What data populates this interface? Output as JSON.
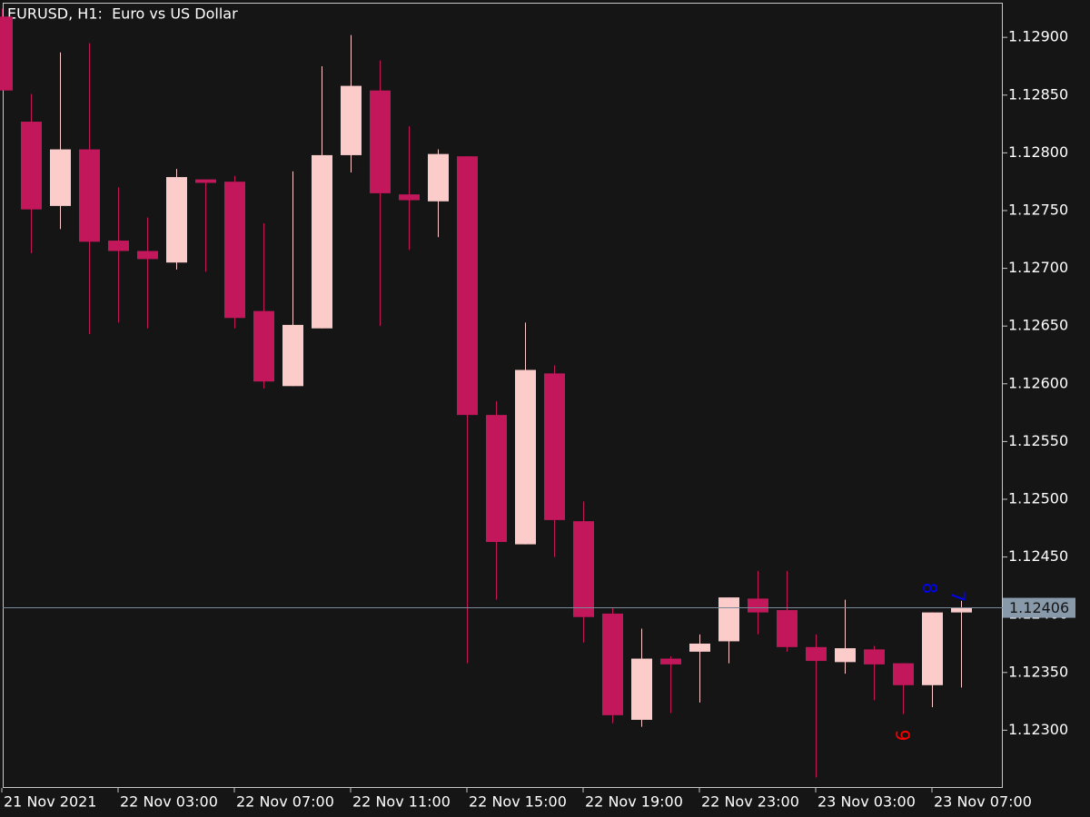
{
  "chart_data": {
    "type": "candlestick",
    "title": "EURUSD, H1:  Euro vs US Dollar",
    "categories": [
      "21 Nov 2021",
      null,
      null,
      null,
      "22 Nov 03:00",
      null,
      null,
      null,
      "22 Nov 07:00",
      null,
      null,
      null,
      "22 Nov 11:00",
      null,
      null,
      null,
      "22 Nov 15:00",
      null,
      null,
      null,
      "22 Nov 19:00",
      null,
      null,
      null,
      "22 Nov 23:00",
      null,
      null,
      null,
      "23 Nov 03:00",
      null,
      null,
      null,
      "23 Nov 07:00",
      null
    ],
    "open": [
      1.12918,
      1.12827,
      1.12754,
      1.12803,
      1.12724,
      1.12715,
      1.12705,
      1.12777,
      1.12775,
      1.12663,
      1.12598,
      1.12648,
      1.12798,
      1.12854,
      1.12764,
      1.12758,
      1.12797,
      1.12573,
      1.12461,
      1.12609,
      1.12481,
      1.12401,
      1.12309,
      1.12362,
      1.12368,
      1.12377,
      1.12414,
      1.12404,
      1.12372,
      1.12359,
      1.1237,
      1.12358,
      1.12339,
      1.12402
    ],
    "high": [
      1.12925,
      1.12851,
      1.12887,
      1.12895,
      1.1277,
      1.12744,
      1.12786,
      1.12777,
      1.1278,
      1.12739,
      1.12784,
      1.12875,
      1.12902,
      1.1288,
      1.12823,
      1.12803,
      1.12797,
      1.12585,
      1.12653,
      1.12616,
      1.12498,
      1.12406,
      1.12388,
      1.12364,
      1.12383,
      1.12415,
      1.12438,
      1.12438,
      1.12383,
      1.12413,
      1.12373,
      1.12358,
      1.12402,
      1.12412
    ],
    "low": [
      1.12854,
      1.12713,
      1.12734,
      1.12643,
      1.12653,
      1.12648,
      1.12699,
      1.12697,
      1.12648,
      1.12596,
      1.12598,
      1.12648,
      1.12783,
      1.1265,
      1.12716,
      1.12727,
      1.12358,
      1.12413,
      1.12461,
      1.1245,
      1.12376,
      1.12306,
      1.12303,
      1.12315,
      1.12324,
      1.12358,
      1.12383,
      1.12368,
      1.12259,
      1.12349,
      1.12326,
      1.12314,
      1.1232,
      1.12337
    ],
    "close": [
      1.12854,
      1.12751,
      1.12803,
      1.12723,
      1.12715,
      1.12708,
      1.12779,
      1.12774,
      1.12657,
      1.12602,
      1.12651,
      1.12798,
      1.12858,
      1.12765,
      1.12759,
      1.12799,
      1.12573,
      1.12463,
      1.12612,
      1.12482,
      1.12398,
      1.12313,
      1.12362,
      1.12357,
      1.12375,
      1.12415,
      1.12402,
      1.12372,
      1.1236,
      1.12371,
      1.12357,
      1.12339,
      1.12402,
      1.12406
    ],
    "up_color": "#fcccca",
    "down_color": "#c2185b",
    "ylim": [
      1.1225,
      1.1293
    ],
    "yticks": [
      {
        "value": 1.123,
        "label": "1.12300"
      },
      {
        "value": 1.1235,
        "label": "1.12350"
      },
      {
        "value": 1.124,
        "label": "1.12400"
      },
      {
        "value": 1.1245,
        "label": "1.12450"
      },
      {
        "value": 1.125,
        "label": "1.12500"
      },
      {
        "value": 1.1255,
        "label": "1.12550"
      },
      {
        "value": 1.126,
        "label": "1.12600"
      },
      {
        "value": 1.1265,
        "label": "1.12650"
      },
      {
        "value": 1.127,
        "label": "1.12700"
      },
      {
        "value": 1.1275,
        "label": "1.12750"
      },
      {
        "value": 1.128,
        "label": "1.12800"
      },
      {
        "value": 1.1285,
        "label": "1.12850"
      },
      {
        "value": 1.129,
        "label": "1.12900"
      }
    ],
    "price_line": 1.12406,
    "annotations": [
      {
        "text": "9",
        "color": "#ff0000"
      },
      {
        "text": "8",
        "color": "#0000ff"
      },
      {
        "text": "7",
        "color": "#0000ff"
      }
    ],
    "grid": false
  }
}
